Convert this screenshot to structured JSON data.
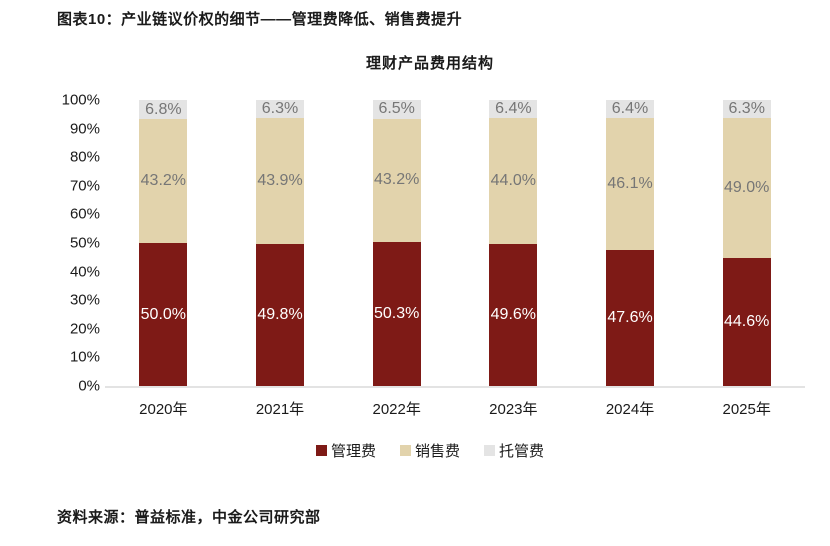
{
  "page": {
    "exhibit_title": "图表10：产业链议价权的细节——管理费降低、销售费提升",
    "source_note": "资料来源：普益标准，中金公司研究部"
  },
  "chart_data": {
    "type": "bar",
    "stacked": true,
    "percent_stacked": true,
    "title": "理财产品费用结构",
    "categories": [
      "2020年",
      "2021年",
      "2022年",
      "2023年",
      "2024年",
      "2025年"
    ],
    "series": [
      {
        "name": "管理费",
        "slug": "management-fee",
        "color": "#7E1A16",
        "label_color": "#ffffff",
        "values": [
          50.0,
          49.8,
          50.3,
          49.6,
          47.6,
          44.6
        ]
      },
      {
        "name": "销售费",
        "slug": "sales-fee",
        "color": "#E2D3AC",
        "label_color": "#767676",
        "values": [
          43.2,
          43.9,
          43.2,
          44.0,
          46.1,
          49.0
        ]
      },
      {
        "name": "托管费",
        "slug": "custody-fee",
        "color": "#E4E4E4",
        "label_color": "#767676",
        "values": [
          6.8,
          6.3,
          6.5,
          6.4,
          6.4,
          6.3
        ]
      }
    ],
    "y_axis": {
      "ticks": [
        "100%",
        "90%",
        "80%",
        "70%",
        "60%",
        "50%",
        "40%",
        "30%",
        "20%",
        "10%",
        "0%"
      ],
      "min": 0,
      "max": 100
    },
    "xlabel": "",
    "ylabel": "",
    "grid": false,
    "legend_position": "bottom",
    "value_suffix": "%",
    "baseline_color": "#e3e3e3"
  }
}
